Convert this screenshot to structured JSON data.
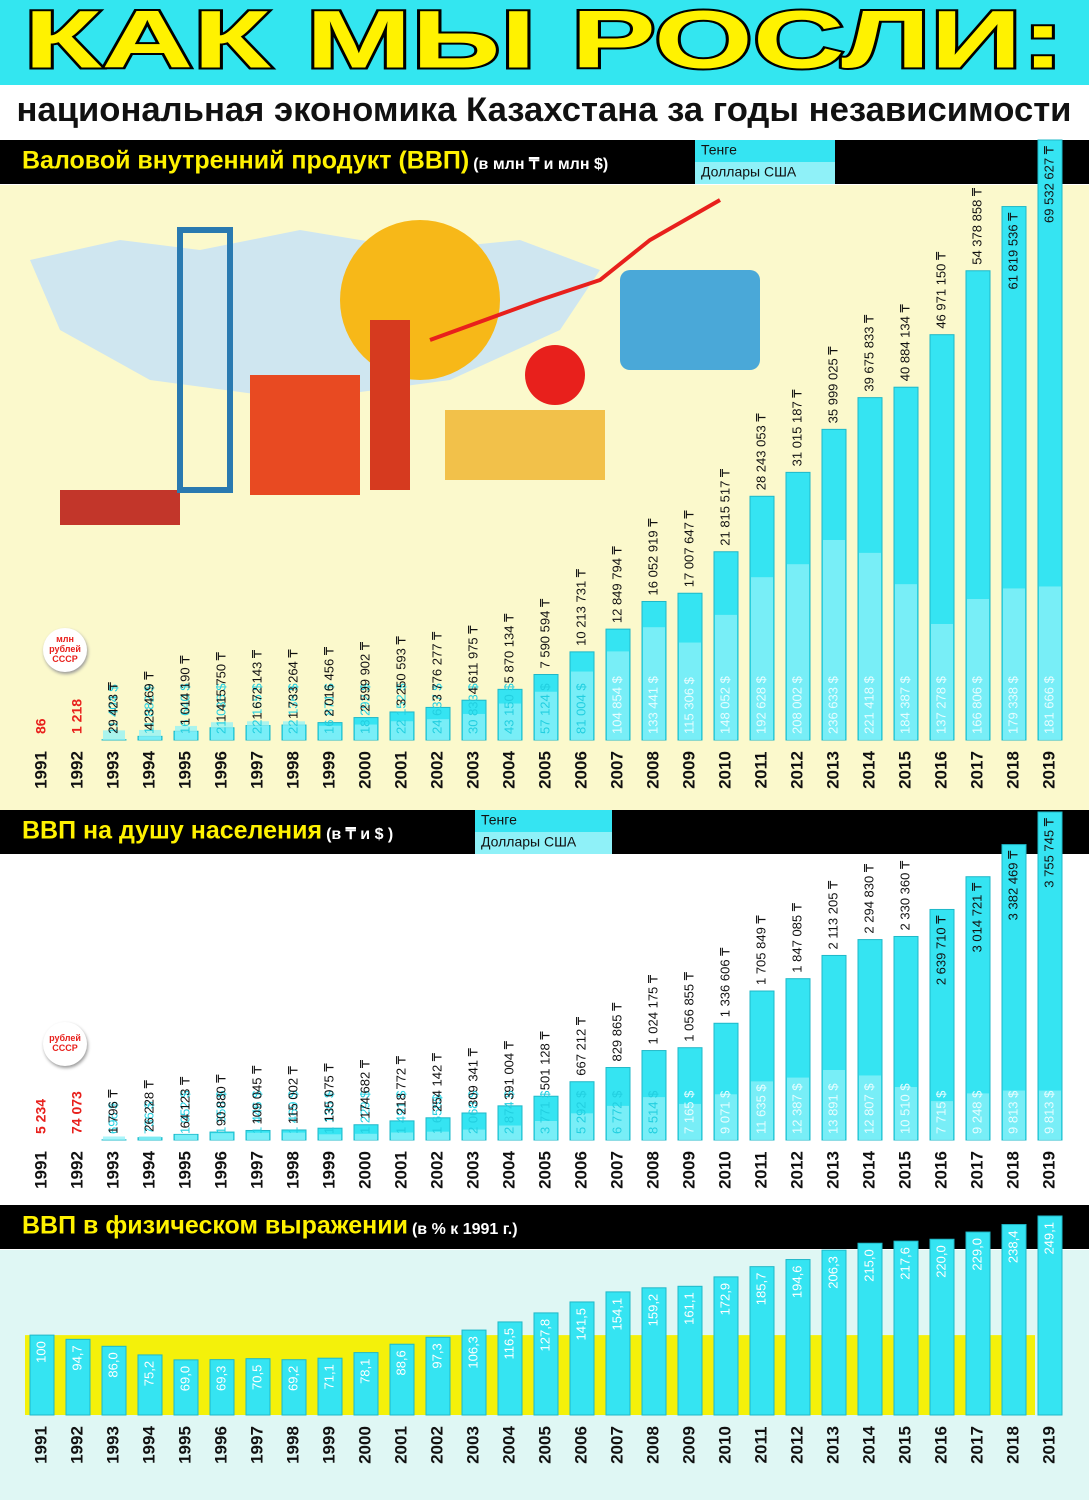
{
  "header": {
    "title": "КАК МЫ РОСЛИ:",
    "subtitle": "национальная экономика Казахстана за годы независимости"
  },
  "chart_data": [
    {
      "type": "bar",
      "title": "Валовой внутренний продукт (ВВП)",
      "subtitle": "(в млн ₸ и млн $)",
      "categories": [
        "1991",
        "1992",
        "1993",
        "1994",
        "1995",
        "1996",
        "1997",
        "1998",
        "1999",
        "2000",
        "2001",
        "2002",
        "2003",
        "2004",
        "2005",
        "2006",
        "2007",
        "2008",
        "2009",
        "2010",
        "2011",
        "2012",
        "2013",
        "2014",
        "2015",
        "2016",
        "2017",
        "2018",
        "2019"
      ],
      "series": [
        {
          "name": "Тенге",
          "color": "#35e4f2",
          "values": [
            null,
            null,
            29423,
            423469,
            1014190,
            1415750,
            1672143,
            1733264,
            2016456,
            2599902,
            3250593,
            3776277,
            4611975,
            5870134,
            7590594,
            10213731,
            12849794,
            16052919,
            17007647,
            21815517,
            28243053,
            31015187,
            35999025,
            39675833,
            40884134,
            46971150,
            54378858,
            61819536,
            69532627
          ],
          "value_labels": [
            null,
            null,
            "29 423 ₸",
            "423 469 ₸",
            "1 014 190 ₸",
            "1 415 750 ₸",
            "1 672 143 ₸",
            "1 733 264 ₸",
            "2 016 456 ₸",
            "2 599 902 ₸",
            "3 250 593 ₸",
            "3 776 277 ₸",
            "4 611 975 ₸",
            "5 870 134 ₸",
            "7 590 594 ₸",
            "10 213 731 ₸",
            "12 849 794 ₸",
            "16 052 919 ₸",
            "17 007 647 ₸",
            "21 815 517 ₸",
            "28 243 053 ₸",
            "31 015 187 ₸",
            "35 999 025 ₸",
            "39 675 833 ₸",
            "40 884 134 ₸",
            "46 971 150 ₸",
            "54 378 858 ₸",
            "61 819 536 ₸",
            "69 532 627 ₸"
          ]
        },
        {
          "name": "Доллары США",
          "color": "#8ff1f8",
          "values": [
            null,
            null,
            11404,
            11882,
            16640,
            21036,
            22165,
            22136,
            16871,
            18292,
            22152,
            24637,
            30833,
            43150,
            57124,
            81004,
            104854,
            133441,
            115306,
            148052,
            192628,
            208002,
            236633,
            221418,
            184387,
            137278,
            166806,
            179338,
            181666
          ],
          "value_labels": [
            null,
            null,
            "11 404 $",
            "11 882 $",
            "16 640 $",
            "21 036 $",
            "22 165 $",
            "22 136 $",
            "16 871 $",
            "18 292 $",
            "22 152 $",
            "24 637 $",
            "30 833 $",
            "43 150 $",
            "57 124 $",
            "81 004 $",
            "104 854 $",
            "133 441 $",
            "115 306 $",
            "148 052 $",
            "192 628 $",
            "208 002 $",
            "236 633 $",
            "221 418 $",
            "184 387 $",
            "137 278 $",
            "166 806 $",
            "179 338 $",
            "181 666 $"
          ]
        },
        {
          "name": "млн рублей СССР",
          "color": "#e8201c",
          "values": [
            86,
            1218,
            null,
            null,
            null,
            null,
            null,
            null,
            null,
            null,
            null,
            null,
            null,
            null,
            null,
            null,
            null,
            null,
            null,
            null,
            null,
            null,
            null,
            null,
            null,
            null,
            null,
            null,
            null
          ],
          "value_labels": [
            "86",
            "1 218",
            null,
            null,
            null,
            null,
            null,
            null,
            null,
            null,
            null,
            null,
            null,
            null,
            null,
            null,
            null,
            null,
            null,
            null,
            null,
            null,
            null,
            null,
            null,
            null,
            null,
            null,
            null
          ]
        }
      ]
    },
    {
      "type": "bar",
      "title": "ВВП на душу населения",
      "subtitle": "(в ₸ и $ )",
      "categories": [
        "1991",
        "1992",
        "1993",
        "1994",
        "1995",
        "1996",
        "1997",
        "1998",
        "1999",
        "2000",
        "2001",
        "2002",
        "2003",
        "2004",
        "2005",
        "2006",
        "2007",
        "2008",
        "2009",
        "2010",
        "2011",
        "2012",
        "2013",
        "2014",
        "2015",
        "2016",
        "2017",
        "2018",
        "2019"
      ],
      "series": [
        {
          "name": "Тенге",
          "color": "#35e4f2",
          "values": [
            null,
            null,
            1796,
            26228,
            64123,
            90880,
            109045,
            115002,
            135075,
            174682,
            218772,
            254142,
            309341,
            391004,
            501128,
            667212,
            829865,
            1024175,
            1056855,
            1336606,
            1705849,
            1847085,
            2113205,
            2294830,
            2330360,
            2639710,
            3014721,
            3382469,
            3755745
          ],
          "value_labels": [
            null,
            null,
            "1 796 ₸",
            "26 228 ₸",
            "64 123 ₸",
            "90 880 ₸",
            "109 045 ₸",
            "115 002 ₸",
            "135 075 ₸",
            "174 682 ₸",
            "218 772 ₸",
            "254 142 ₸",
            "309 341 ₸",
            "391 004 ₸",
            "501 128 ₸",
            "667 212 ₸",
            "829 865 ₸",
            "1 024 175 ₸",
            "1 056 855 ₸",
            "1 336 606 ₸",
            "1 705 849 ₸",
            "1 847 085 ₸",
            "2 113 205 ₸",
            "2 294 830 ₸",
            "2 330 360 ₸",
            "2 639 710 ₸",
            "3 014 721 ₸",
            "3 382 469 ₸",
            "3 755 745 ₸"
          ]
        },
        {
          "name": "Доллары США",
          "color": "#8ff1f8",
          "values": [
            null,
            null,
            696,
            736,
            1052,
            1350,
            1446,
            1469,
            1130,
            1229,
            1491,
            1658,
            2068,
            2874,
            3771,
            5292,
            6772,
            8514,
            7165,
            9071,
            11635,
            12387,
            13891,
            12807,
            10510,
            7715,
            9248,
            9813,
            9813
          ],
          "value_labels": [
            null,
            null,
            "696 $",
            "736 $",
            "1 052 $",
            "1 350 $",
            "1 446 $",
            "1 469 $",
            "1 130 $",
            "1 229 $",
            "1 491 $",
            "1 658$",
            "2 068 $",
            "2 874 $",
            "3 771 $",
            "5 292 $",
            "6 772 $",
            "8 514 $",
            "7 165 $",
            "9 071 $",
            "11 635 $",
            "12 387 $",
            "13 891 $",
            "12 807 $",
            "10 510 $",
            "7 715 $",
            "9 248 $",
            "9 813 $",
            "9 813 $"
          ]
        },
        {
          "name": "рублей СССР",
          "color": "#e8201c",
          "values": [
            5234,
            74073,
            null,
            null,
            null,
            null,
            null,
            null,
            null,
            null,
            null,
            null,
            null,
            null,
            null,
            null,
            null,
            null,
            null,
            null,
            null,
            null,
            null,
            null,
            null,
            null,
            null,
            null,
            null
          ],
          "value_labels": [
            "5 234",
            "74 073",
            null,
            null,
            null,
            null,
            null,
            null,
            null,
            null,
            null,
            null,
            null,
            null,
            null,
            null,
            null,
            null,
            null,
            null,
            null,
            null,
            null,
            null,
            null,
            null,
            null,
            null,
            null
          ]
        }
      ]
    },
    {
      "type": "bar",
      "title": "ВВП в физическом выражении",
      "subtitle": "(в % к 1991 г.)",
      "categories": [
        "1991",
        "1992",
        "1993",
        "1994",
        "1995",
        "1996",
        "1997",
        "1998",
        "1999",
        "2000",
        "2001",
        "2002",
        "2003",
        "2004",
        "2005",
        "2006",
        "2007",
        "2008",
        "2009",
        "2010",
        "2011",
        "2012",
        "2013",
        "2014",
        "2015",
        "2016",
        "2017",
        "2018",
        "2019"
      ],
      "color": "#35e4f2",
      "values": [
        100,
        94.7,
        86.0,
        75.2,
        69.0,
        69.3,
        70.5,
        69.2,
        71.1,
        78.1,
        88.6,
        97.3,
        106.3,
        116.5,
        127.8,
        141.5,
        154.1,
        159.2,
        161.1,
        172.9,
        185.7,
        194.6,
        206.3,
        215.0,
        217.6,
        220.0,
        229.0,
        238.4,
        249.1
      ],
      "value_labels": [
        "100",
        "94,7",
        "86,0",
        "75,2",
        "69,0",
        "69,3",
        "70,5",
        "69,2",
        "71,1",
        "78,1",
        "88,6",
        "97,3",
        "106,3",
        "116,5",
        "127,8",
        "141,5",
        "154,1",
        "159,2",
        "161,1",
        "172,9",
        "185,7",
        "194,6",
        "206,3",
        "215,0",
        "217,6",
        "220,0",
        "229,0",
        "238,4",
        "249,1"
      ]
    }
  ]
}
